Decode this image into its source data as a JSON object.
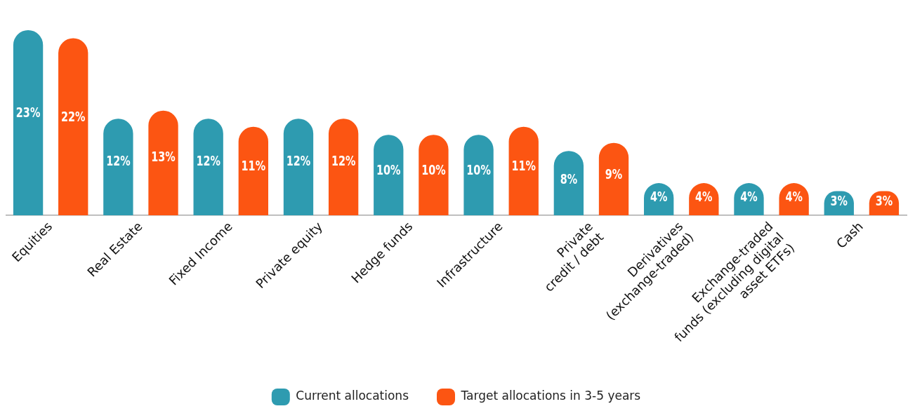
{
  "chart_data": {
    "type": "bar",
    "categories": [
      "Equities",
      "Real Estate",
      "Fixed Income",
      "Private equity",
      "Hedge funds",
      "Infrastructure",
      "Private\ncredit / debt",
      "Derivatives\n(exchange-traded)",
      "Exchange-traded\nfunds (excluding digital\nasset ETFs)",
      "Cash"
    ],
    "series": [
      {
        "name": "Current allocations",
        "color": "#2e9bb0",
        "values": [
          23,
          12,
          12,
          12,
          10,
          10,
          8,
          4,
          4,
          3
        ],
        "value_labels": [
          "23%",
          "12%",
          "12%",
          "12%",
          "10%",
          "10%",
          "8%",
          "4%",
          "4%",
          "3%"
        ]
      },
      {
        "name": "Target allocations in 3-5 years",
        "color": "#fc5512",
        "values": [
          22,
          13,
          11,
          12,
          10,
          11,
          9,
          4,
          4,
          3
        ],
        "value_labels": [
          "22%",
          "13%",
          "11%",
          "12%",
          "10%",
          "11%",
          "9%",
          "4%",
          "4%",
          "3%"
        ]
      }
    ],
    "legend": "bottom",
    "grid": false
  }
}
